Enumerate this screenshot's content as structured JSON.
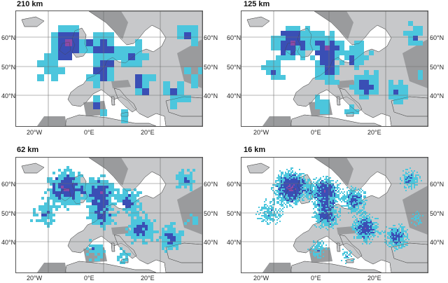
{
  "figure": {
    "panels": [
      {
        "title": "210 km",
        "lat_left": [
          "60°N",
          "50°N",
          "40°N"
        ],
        "lat_right": [
          "60°N",
          "50°N",
          "40°N"
        ],
        "lon": [
          "20°W",
          "0°E",
          "20°E"
        ]
      },
      {
        "title": "125 km",
        "lat_left": [
          "60°N",
          "50°N",
          "40°N"
        ],
        "lat_right": [
          "60°N",
          "50°N",
          "40°N"
        ],
        "lon": [
          "20°W",
          "0°E",
          "20°E"
        ]
      },
      {
        "title": "62 km",
        "lat_left": [
          "60°N",
          "50°N",
          "40°N"
        ],
        "lat_right": [
          "60°N",
          "50°N",
          "40°N"
        ],
        "lon": [
          "20°W",
          "0°E",
          "20°E"
        ]
      },
      {
        "title": "16 km",
        "lat_left": [
          "60°N",
          "50°N",
          "40°N"
        ],
        "lat_right": [
          "60°N",
          "50°N",
          "40°N"
        ],
        "lon": [
          "20°W",
          "0°E",
          "20°E"
        ]
      }
    ],
    "colors": {
      "land": "#c7c8ca",
      "highland": "#9a9b9d",
      "sea": "#ffffff",
      "grid": "#6e6e6e",
      "level_low": "#4cc6dd",
      "level_mid": "#3a4fb5",
      "level_high": "#8a4aa8"
    }
  }
}
